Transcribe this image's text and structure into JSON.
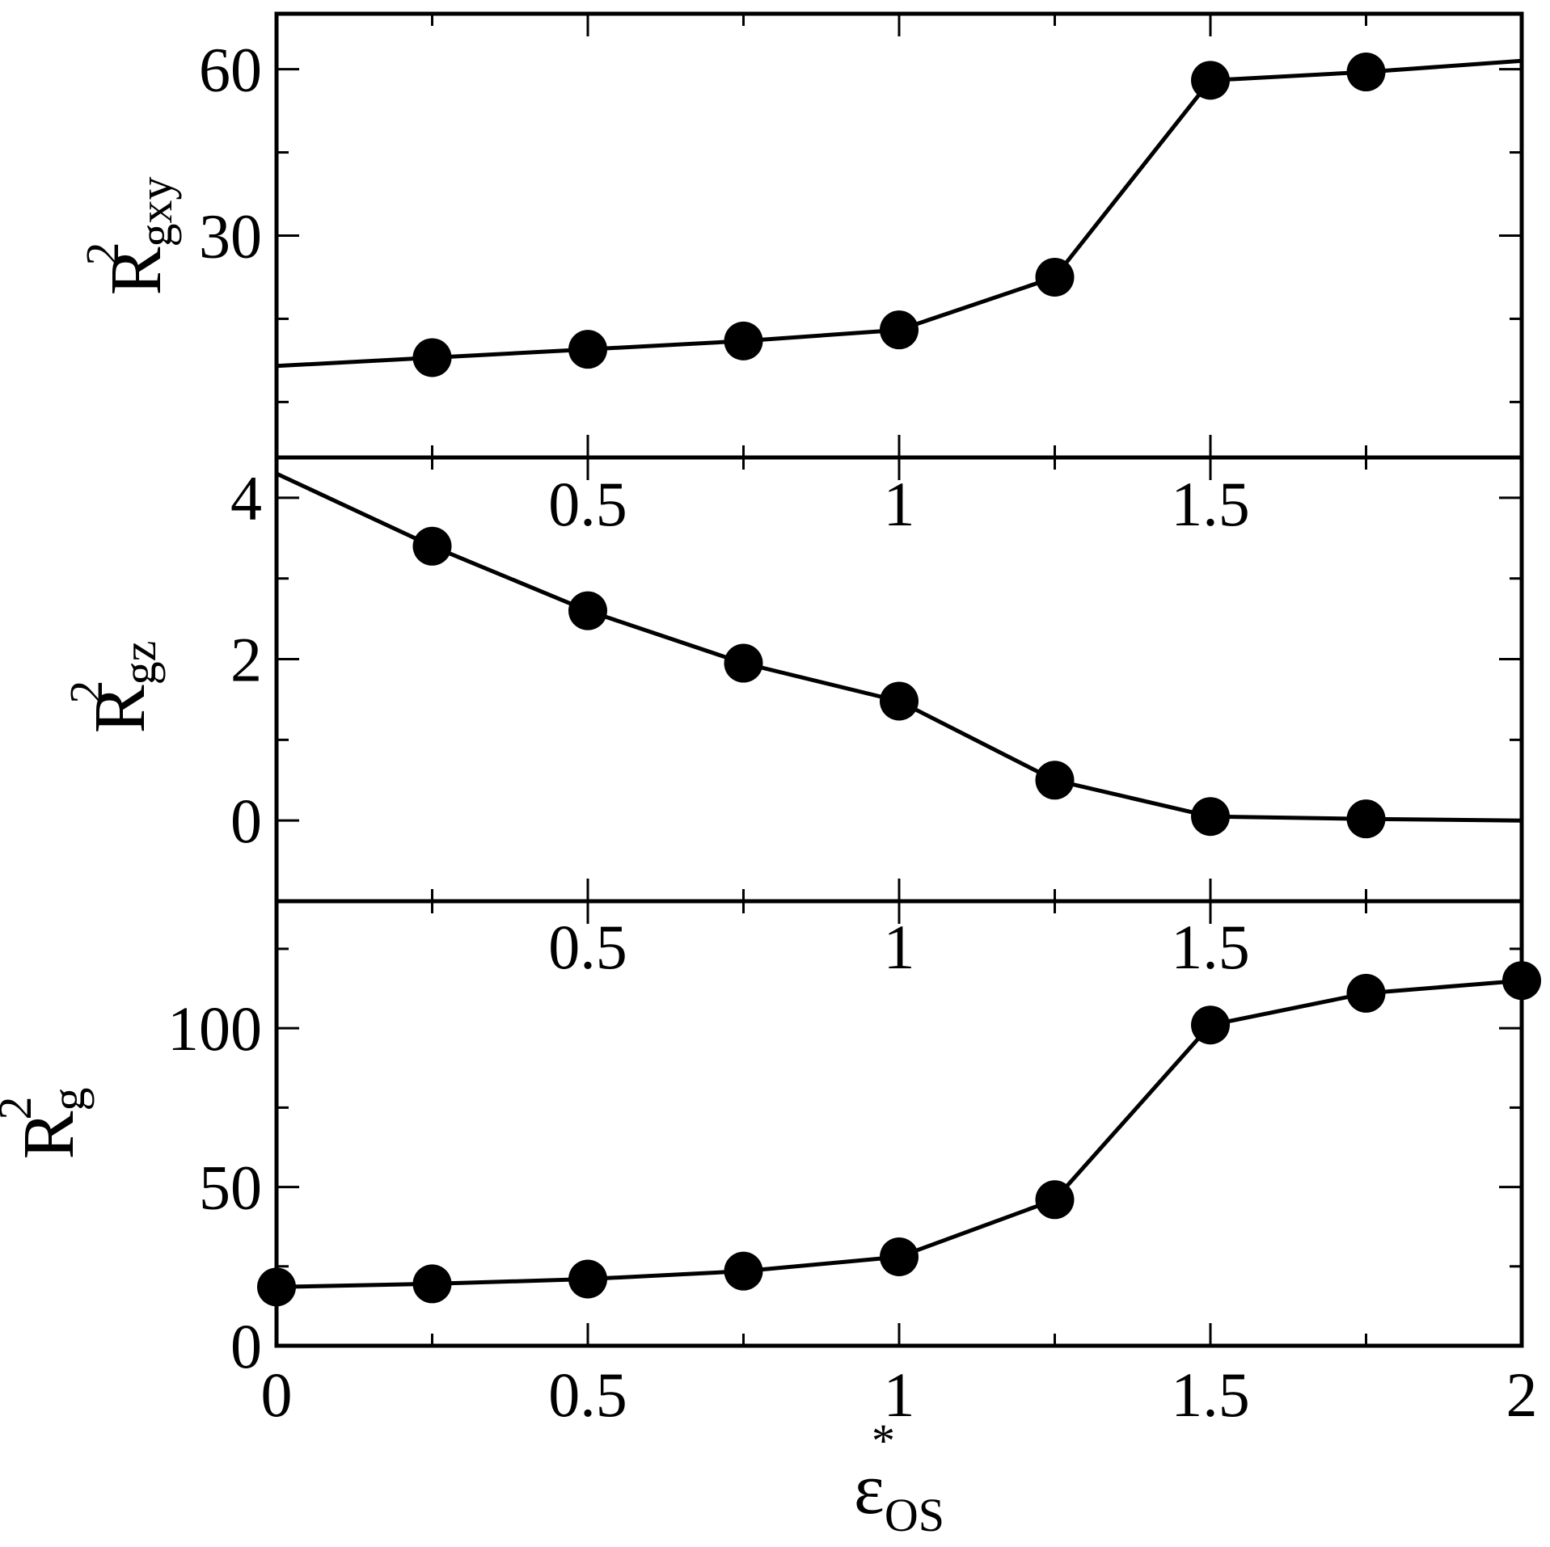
{
  "chart_data": [
    {
      "type": "line",
      "panel": "top",
      "ylabel": {
        "base": "R",
        "sup": "2",
        "sub": "gxy"
      },
      "xlim": [
        0,
        2
      ],
      "ylim": [
        -10,
        70
      ],
      "xticks": [
        0.5,
        1,
        1.5
      ],
      "xtick_labels": [
        "0.5",
        "1",
        "1.5"
      ],
      "xminor": [
        0.25,
        0.75,
        1.25,
        1.75
      ],
      "yticks": [
        30,
        60
      ],
      "ytick_labels": [
        "30",
        "60"
      ],
      "yminor": [
        0,
        15,
        45
      ],
      "markers": true,
      "series": [
        {
          "x": [
            0,
            0.25,
            0.5,
            0.75,
            1.0,
            1.25,
            1.5,
            1.75,
            2.0
          ],
          "y": [
            6.5,
            8.0,
            9.5,
            11.0,
            13.0,
            22.5,
            58.0,
            59.5,
            61.5
          ],
          "marker_x": [
            0.25,
            0.5,
            0.75,
            1.0,
            1.25,
            1.5,
            1.75
          ],
          "marker_y": [
            8.0,
            9.5,
            11.0,
            13.0,
            22.5,
            58.0,
            59.5
          ]
        }
      ]
    },
    {
      "type": "line",
      "panel": "middle",
      "ylabel": {
        "base": "R",
        "sup": "2",
        "sub": "gz"
      },
      "xlim": [
        0,
        2
      ],
      "ylim": [
        -1,
        4.5
      ],
      "xticks": [
        0.5,
        1,
        1.5
      ],
      "xtick_labels": [
        "0.5",
        "1",
        "1.5"
      ],
      "xminor": [
        0.25,
        0.75,
        1.25,
        1.75
      ],
      "yticks": [
        0,
        2,
        4
      ],
      "ytick_labels": [
        "0",
        "2",
        "4"
      ],
      "yminor": [
        1,
        3
      ],
      "markers": true,
      "series": [
        {
          "x": [
            0,
            0.25,
            0.5,
            0.75,
            1.0,
            1.25,
            1.5,
            1.75,
            2.0
          ],
          "y": [
            4.3,
            3.4,
            2.6,
            1.95,
            1.48,
            0.5,
            0.05,
            0.02,
            0.0
          ],
          "marker_x": [
            0.25,
            0.5,
            0.75,
            1.0,
            1.25,
            1.5,
            1.75
          ],
          "marker_y": [
            3.4,
            2.6,
            1.95,
            1.48,
            0.5,
            0.05,
            0.02
          ]
        }
      ]
    },
    {
      "type": "line",
      "panel": "bottom",
      "ylabel": {
        "base": "R",
        "sup": "2",
        "sub": "g"
      },
      "xlabel": {
        "base": "ε",
        "sup": "*",
        "sub": "OS"
      },
      "xlim": [
        0,
        2
      ],
      "ylim": [
        0,
        140
      ],
      "xticks": [
        0,
        0.5,
        1,
        1.5,
        2
      ],
      "xtick_labels": [
        "0",
        "0.5",
        "1",
        "1.5",
        "2"
      ],
      "xminor": [
        0.25,
        0.75,
        1.25,
        1.75
      ],
      "yticks": [
        0,
        50,
        100
      ],
      "ytick_labels": [
        "0",
        "50",
        "100"
      ],
      "yminor": [
        25,
        75,
        125
      ],
      "markers": true,
      "series": [
        {
          "x": [
            0,
            0.25,
            0.5,
            0.75,
            1.0,
            1.25,
            1.5,
            1.75,
            2.0
          ],
          "y": [
            18.5,
            19.5,
            21.0,
            23.5,
            28.0,
            46.0,
            101.0,
            111.0,
            115.0
          ],
          "marker_x": [
            0,
            0.25,
            0.5,
            0.75,
            1.0,
            1.25,
            1.5,
            1.75,
            2.0
          ],
          "marker_y": [
            18.5,
            19.5,
            21.0,
            23.5,
            28.0,
            46.0,
            101.0,
            111.0,
            115.0
          ]
        }
      ]
    }
  ]
}
